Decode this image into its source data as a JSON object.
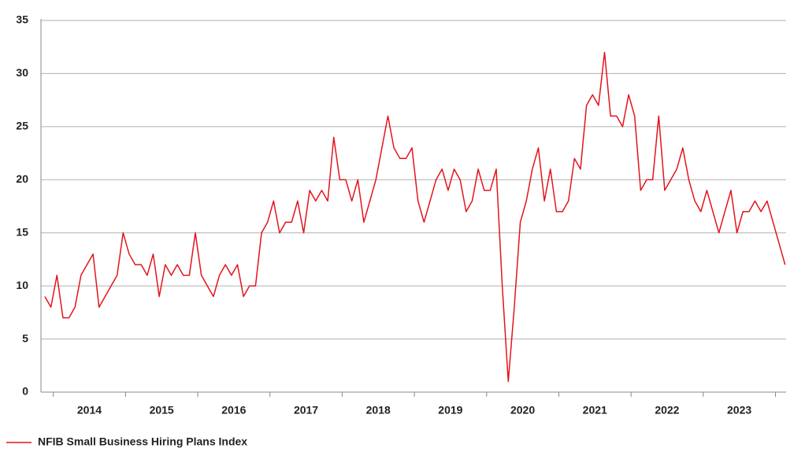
{
  "chart_data": {
    "type": "line",
    "categories": [
      null,
      null,
      null,
      null,
      null,
      null,
      null,
      "2014",
      null,
      null,
      null,
      null,
      null,
      null,
      null,
      null,
      null,
      null,
      null,
      "2015",
      null,
      null,
      null,
      null,
      null,
      null,
      null,
      null,
      null,
      null,
      null,
      "2016",
      null,
      null,
      null,
      null,
      null,
      null,
      null,
      null,
      null,
      null,
      null,
      "2017",
      null,
      null,
      null,
      null,
      null,
      null,
      null,
      null,
      null,
      null,
      null,
      "2018",
      null,
      null,
      null,
      null,
      null,
      null,
      null,
      null,
      null,
      null,
      null,
      "2019",
      null,
      null,
      null,
      null,
      null,
      null,
      null,
      null,
      null,
      null,
      null,
      "2020",
      null,
      null,
      null,
      null,
      null,
      null,
      null,
      null,
      null,
      null,
      null,
      "2021",
      null,
      null,
      null,
      null,
      null,
      null,
      null,
      null,
      null,
      null,
      null,
      "2022",
      null,
      null,
      null,
      null,
      null,
      null,
      null,
      null,
      null,
      null,
      null,
      "2023",
      null,
      null,
      null,
      null,
      null,
      null,
      null,
      null
    ],
    "series": [
      {
        "name": "NFIB Small Business Hiring Plans Index",
        "color": "#e3141c",
        "values": [
          9,
          8,
          11,
          7,
          7,
          8,
          11,
          12,
          13,
          8,
          9,
          10,
          11,
          15,
          13,
          12,
          12,
          11,
          13,
          9,
          12,
          11,
          12,
          11,
          11,
          15,
          11,
          10,
          9,
          11,
          12,
          11,
          12,
          9,
          10,
          10,
          15,
          16,
          18,
          15,
          16,
          16,
          18,
          15,
          19,
          18,
          19,
          18,
          24,
          20,
          20,
          18,
          20,
          16,
          18,
          20,
          23,
          26,
          23,
          22,
          22,
          23,
          18,
          16,
          18,
          20,
          21,
          19,
          21,
          20,
          17,
          18,
          21,
          19,
          19,
          21,
          10,
          1,
          8,
          16,
          18,
          21,
          23,
          18,
          21,
          17,
          17,
          18,
          22,
          21,
          27,
          28,
          27,
          32,
          26,
          26,
          25,
          28,
          26,
          19,
          20,
          20,
          26,
          19,
          20,
          21,
          23,
          20,
          18,
          17,
          19,
          17,
          15,
          17,
          19,
          15,
          17,
          17,
          18,
          17,
          18,
          16,
          14,
          12
        ]
      }
    ],
    "ylim": [
      0,
      35
    ],
    "yticks": [
      0,
      5,
      10,
      15,
      20,
      25,
      30,
      35
    ],
    "grid": true,
    "legend": "bottom-left"
  }
}
